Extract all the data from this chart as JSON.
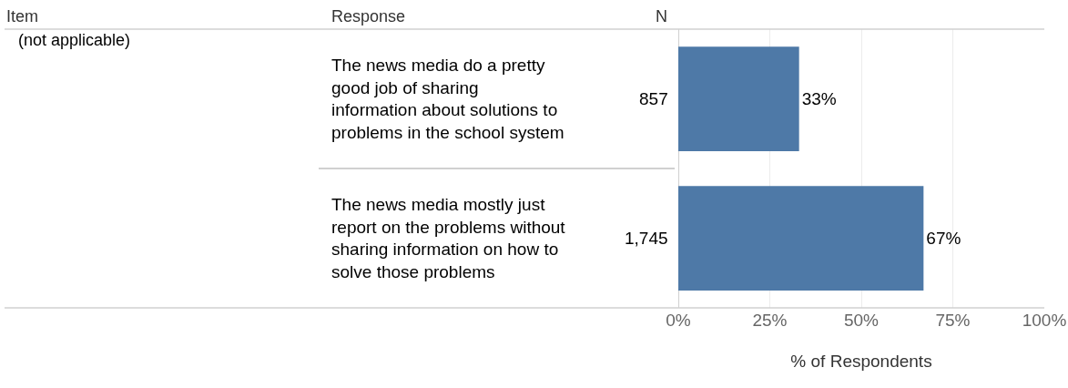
{
  "chart_data": {
    "type": "bar",
    "orientation": "horizontal",
    "xlabel": "% of Respondents",
    "categories": [
      "The news media do a pretty good job of sharing information about solutions to problems in the school system",
      "The news media mostly just report on the problems without sharing information on how to solve those problems"
    ],
    "values": [
      33,
      67
    ],
    "value_labels": [
      "33%",
      "67%"
    ],
    "color": "#4e79a7",
    "xlim": [
      0,
      100
    ],
    "xticks": [
      {
        "value": 0,
        "label": "0%"
      },
      {
        "value": 25,
        "label": "25%"
      },
      {
        "value": 50,
        "label": "50%"
      },
      {
        "value": 75,
        "label": "75%"
      },
      {
        "value": 100,
        "label": "100%"
      }
    ],
    "grid": "x",
    "annotations": [
      "Item",
      "Response",
      "N",
      "(not applicable)",
      "857",
      "1,745"
    ]
  }
}
